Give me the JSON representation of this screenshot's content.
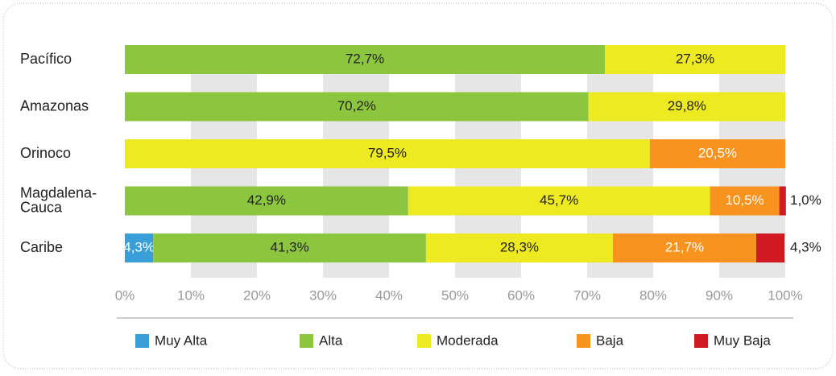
{
  "chart_data": {
    "type": "stacked-bar-horizontal",
    "categories": [
      "Pacífico",
      "Amazonas",
      "Orinoco",
      "Magdalena-Cauca",
      "Caribe"
    ],
    "series": [
      {
        "name": "Muy Alta",
        "color": "#3a9fd8",
        "values": [
          null,
          null,
          null,
          null,
          4.3
        ],
        "value_labels": [
          null,
          null,
          null,
          null,
          "4,3%"
        ]
      },
      {
        "name": "Alta",
        "color": "#8cc63f",
        "values": [
          72.7,
          70.2,
          null,
          42.9,
          41.3
        ],
        "value_labels": [
          "72,7%",
          "70,2%",
          null,
          "42,9%",
          "41,3%"
        ]
      },
      {
        "name": "Moderada",
        "color": "#eeea22",
        "values": [
          27.3,
          29.8,
          79.5,
          45.7,
          28.3
        ],
        "value_labels": [
          "27,3%",
          "29,8%",
          "79,5%",
          "45,7%",
          "28,3%"
        ]
      },
      {
        "name": "Baja",
        "color": "#f7931e",
        "values": [
          null,
          null,
          20.5,
          10.5,
          21.7
        ],
        "value_labels": [
          null,
          null,
          "20,5%",
          "10,5%",
          "21,7%"
        ]
      },
      {
        "name": "Muy Baja",
        "color": "#d01920",
        "values": [
          null,
          null,
          null,
          1.0,
          4.3
        ],
        "value_labels": [
          null,
          null,
          null,
          "1,0%",
          "4,3%"
        ]
      }
    ],
    "xlim": [
      0,
      100
    ],
    "xticks": [
      {
        "value": 0,
        "label": "0%"
      },
      {
        "value": 10,
        "label": "10%"
      },
      {
        "value": 20,
        "label": "20%"
      },
      {
        "value": 30,
        "label": "30%"
      },
      {
        "value": 40,
        "label": "40%"
      },
      {
        "value": 50,
        "label": "50%"
      },
      {
        "value": 60,
        "label": "60%"
      },
      {
        "value": 70,
        "label": "70%"
      },
      {
        "value": 80,
        "label": "80%"
      },
      {
        "value": 90,
        "label": "90%"
      },
      {
        "value": 100,
        "label": "100%"
      }
    ],
    "grid": true,
    "legend": "bottom"
  }
}
